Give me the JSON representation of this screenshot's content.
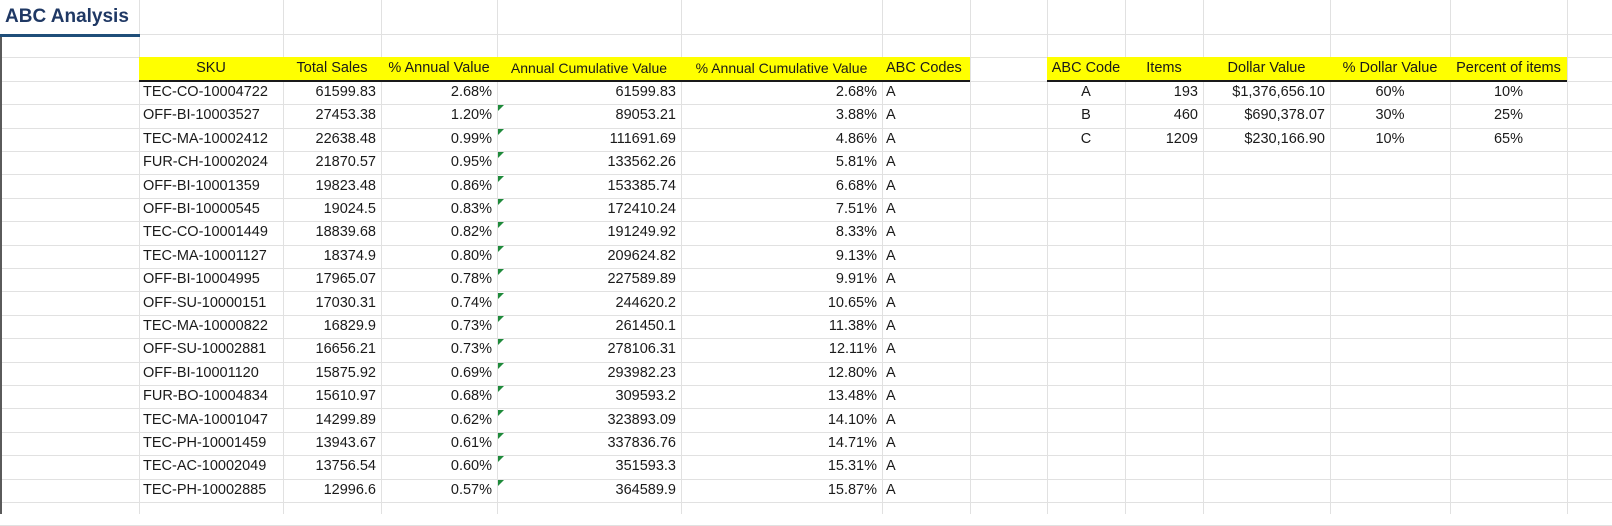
{
  "sheet": {
    "title": "ABC Analysis",
    "main_headers": [
      "SKU",
      "Total Sales",
      "% Annual Value",
      "Annual Cumulative Value",
      "% Annual Cumulative Value",
      "ABC Codes"
    ],
    "main_rows": [
      [
        "TEC-CO-10004722",
        "61599.83",
        "2.68%",
        "61599.83",
        "2.68%",
        "A"
      ],
      [
        "OFF-BI-10003527",
        "27453.38",
        "1.20%",
        "89053.21",
        "3.88%",
        "A"
      ],
      [
        "TEC-MA-10002412",
        "22638.48",
        "0.99%",
        "111691.69",
        "4.86%",
        "A"
      ],
      [
        "FUR-CH-10002024",
        "21870.57",
        "0.95%",
        "133562.26",
        "5.81%",
        "A"
      ],
      [
        "OFF-BI-10001359",
        "19823.48",
        "0.86%",
        "153385.74",
        "6.68%",
        "A"
      ],
      [
        "OFF-BI-10000545",
        "19024.5",
        "0.83%",
        "172410.24",
        "7.51%",
        "A"
      ],
      [
        "TEC-CO-10001449",
        "18839.68",
        "0.82%",
        "191249.92",
        "8.33%",
        "A"
      ],
      [
        "TEC-MA-10001127",
        "18374.9",
        "0.80%",
        "209624.82",
        "9.13%",
        "A"
      ],
      [
        "OFF-BI-10004995",
        "17965.07",
        "0.78%",
        "227589.89",
        "9.91%",
        "A"
      ],
      [
        "OFF-SU-10000151",
        "17030.31",
        "0.74%",
        "244620.2",
        "10.65%",
        "A"
      ],
      [
        "TEC-MA-10000822",
        "16829.9",
        "0.73%",
        "261450.1",
        "11.38%",
        "A"
      ],
      [
        "OFF-SU-10002881",
        "16656.21",
        "0.73%",
        "278106.31",
        "12.11%",
        "A"
      ],
      [
        "OFF-BI-10001120",
        "15875.92",
        "0.69%",
        "293982.23",
        "12.80%",
        "A"
      ],
      [
        "FUR-BO-10004834",
        "15610.97",
        "0.68%",
        "309593.2",
        "13.48%",
        "A"
      ],
      [
        "TEC-MA-10001047",
        "14299.89",
        "0.62%",
        "323893.09",
        "14.10%",
        "A"
      ],
      [
        "TEC-PH-10001459",
        "13943.67",
        "0.61%",
        "337836.76",
        "14.71%",
        "A"
      ],
      [
        "TEC-AC-10002049",
        "13756.54",
        "0.60%",
        "351593.3",
        "15.31%",
        "A"
      ],
      [
        "TEC-PH-10002885",
        "12996.6",
        "0.57%",
        "364589.9",
        "15.87%",
        "A"
      ]
    ],
    "summary_headers": [
      "ABC Code",
      "Items",
      "Dollar Value",
      "% Dollar Value",
      "Percent of items"
    ],
    "summary_rows": [
      [
        "A",
        "193",
        "$1,376,656.10",
        "60%",
        "10%"
      ],
      [
        "B",
        "460",
        "$690,378.07",
        "30%",
        "25%"
      ],
      [
        "C",
        "1209",
        "$230,166.90",
        "10%",
        "65%"
      ]
    ],
    "colors": {
      "header_fill": "#ffff00",
      "title_text": "#1f3864",
      "gridline": "#e1e1e1",
      "error_indicator": "#1e8a3a"
    }
  }
}
